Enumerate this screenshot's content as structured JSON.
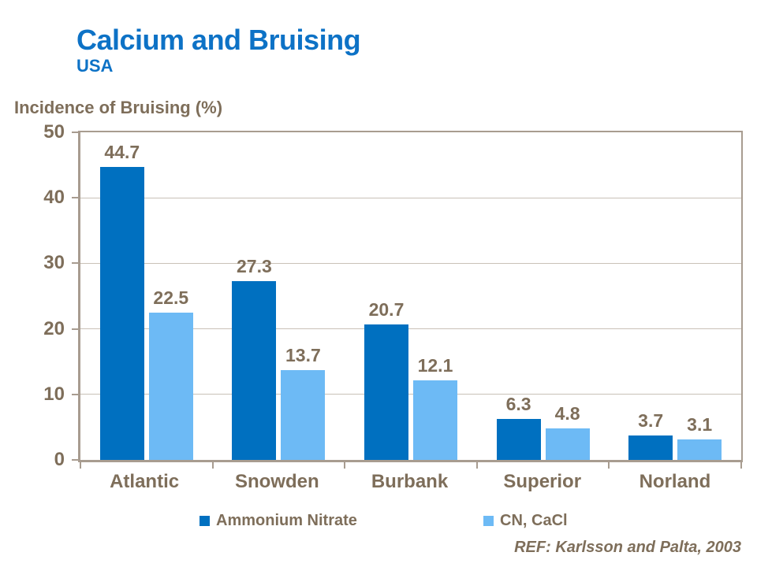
{
  "header": {
    "title": "Calcium and Bruising",
    "subtitle": "USA"
  },
  "footnote": "REF: Karlsson and Palta, 2003",
  "colors": {
    "title_blue": "#0d72c6",
    "series1_dark_blue": "#0070c0",
    "series2_light_blue": "#6dbaf5",
    "text_brown_gray": "#7e6e5a",
    "axis_border": "#a89c90",
    "gridline": "#c9c1b7",
    "background": "#ffffff"
  },
  "chart_data": {
    "type": "bar",
    "title": "Calcium and Bruising",
    "subtitle": "USA",
    "categories": [
      "Atlantic",
      "Snowden",
      "Burbank",
      "Superior",
      "Norland"
    ],
    "series": [
      {
        "name": "Ammonium Nitrate",
        "color": "#0070c0",
        "values": [
          44.7,
          27.3,
          20.7,
          6.3,
          3.7
        ]
      },
      {
        "name": "CN, CaCl",
        "color": "#6dbaf5",
        "values": [
          22.5,
          13.7,
          12.1,
          4.8,
          3.1
        ]
      }
    ],
    "xlabel": "",
    "ylabel": "Incidence of Bruising (%)",
    "ylim": [
      0,
      50
    ],
    "yticks": [
      0,
      10,
      20,
      30,
      40,
      50
    ],
    "grid": true,
    "data_labels": true,
    "legend_position": "bottom"
  }
}
